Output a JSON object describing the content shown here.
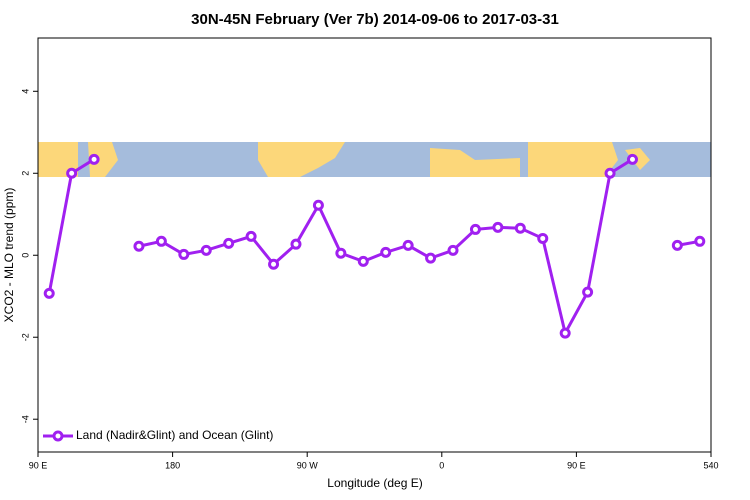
{
  "chart_data": {
    "type": "line",
    "title": "30N-45N February (Ver 7b)   2014-09-06 to 2017-03-31",
    "x_label": "Longitude (deg E)",
    "y_label": "XCO2 - MLO trend (ppm)",
    "x": [
      97.5,
      112.5,
      127.5,
      142.5,
      157.5,
      172.5,
      187.5,
      202.5,
      217.5,
      232.5,
      247.5,
      262.5,
      277.5,
      292.5,
      307.5,
      322.5,
      337.5,
      352.5,
      367.5,
      382.5,
      397.5,
      412.5,
      427.5,
      442.5,
      457.5,
      472.5,
      487.5,
      502.5,
      517.5,
      532.5
    ],
    "series": [
      {
        "name": "Land (Nadir&Glint) and Ocean (Glint)",
        "color": "#a020f0",
        "values": [
          -0.93,
          2.0,
          2.34,
          null,
          0.22,
          0.34,
          0.02,
          0.12,
          0.29,
          0.46,
          -0.22,
          0.27,
          1.22,
          0.05,
          -0.15,
          0.07,
          0.24,
          -0.07,
          0.12,
          0.63,
          0.68,
          0.66,
          0.41,
          -1.9,
          -0.9,
          2.0,
          2.34,
          null,
          0.24,
          0.34
        ]
      }
    ],
    "xlim": [
      90,
      540
    ],
    "xticks": [
      {
        "value": 90,
        "label": "90 E"
      },
      180,
      {
        "value": 270,
        "label": "90 W"
      },
      {
        "value": 360,
        "label": "0"
      },
      {
        "value": 450,
        "label": "90 E"
      },
      540
    ],
    "ylim": [
      -4.8,
      5.3
    ],
    "yticks": [
      -4,
      -2,
      0,
      2,
      4
    ],
    "legend": "bottom-left"
  }
}
